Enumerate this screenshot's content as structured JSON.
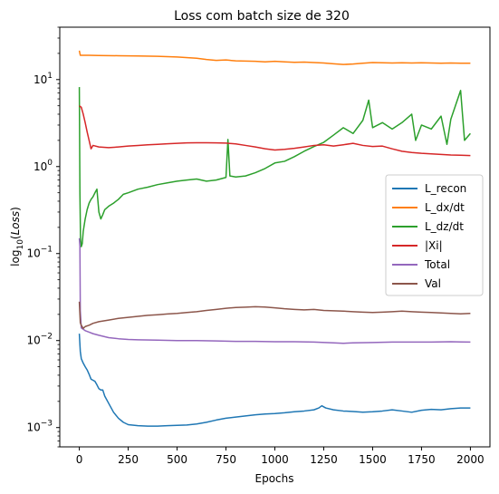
{
  "chart_data": {
    "type": "line",
    "title": "Loss com batch size de 320",
    "xlabel": "Epochs",
    "ylabel_prefix": "log",
    "ylabel_sub": "10",
    "ylabel_paren_open": "(",
    "ylabel_var": "Loss",
    "ylabel_paren_close": ")",
    "xlim": [
      -100,
      2100
    ],
    "ylim": [
      0.0006,
      40
    ],
    "yscale": "log",
    "grid": false,
    "legend_position": "center-right",
    "x_ticks": [
      0,
      250,
      500,
      750,
      1000,
      1250,
      1500,
      1750,
      2000
    ],
    "x_tick_labels": [
      "0",
      "250",
      "500",
      "750",
      "1000",
      "1250",
      "1500",
      "1750",
      "2000"
    ],
    "y_ticks": [
      {
        "value": 0.001,
        "base": "10",
        "exp": "−3"
      },
      {
        "value": 0.01,
        "base": "10",
        "exp": "−2"
      },
      {
        "value": 0.1,
        "base": "10",
        "exp": "−1"
      },
      {
        "value": 1,
        "base": "10",
        "exp": "0"
      },
      {
        "value": 10,
        "base": "10",
        "exp": "1"
      }
    ],
    "series": [
      {
        "name": "L_recon",
        "color": "#1f77b4",
        "points": [
          [
            0,
            0.012
          ],
          [
            5,
            0.0075
          ],
          [
            10,
            0.0062
          ],
          [
            20,
            0.0055
          ],
          [
            30,
            0.005
          ],
          [
            40,
            0.0046
          ],
          [
            50,
            0.0041
          ],
          [
            60,
            0.0036
          ],
          [
            70,
            0.0035
          ],
          [
            80,
            0.0034
          ],
          [
            90,
            0.0031
          ],
          [
            100,
            0.0028
          ],
          [
            110,
            0.0027
          ],
          [
            120,
            0.0027
          ],
          [
            130,
            0.0023
          ],
          [
            150,
            0.0019
          ],
          [
            175,
            0.0015
          ],
          [
            200,
            0.00128
          ],
          [
            225,
            0.00115
          ],
          [
            250,
            0.00108
          ],
          [
            300,
            0.00105
          ],
          [
            350,
            0.00104
          ],
          [
            400,
            0.00104
          ],
          [
            450,
            0.00105
          ],
          [
            500,
            0.00106
          ],
          [
            550,
            0.00107
          ],
          [
            600,
            0.0011
          ],
          [
            650,
            0.00115
          ],
          [
            700,
            0.00122
          ],
          [
            750,
            0.00128
          ],
          [
            800,
            0.00132
          ],
          [
            850,
            0.00136
          ],
          [
            900,
            0.0014
          ],
          [
            950,
            0.00143
          ],
          [
            1000,
            0.00145
          ],
          [
            1050,
            0.00148
          ],
          [
            1100,
            0.00152
          ],
          [
            1150,
            0.00155
          ],
          [
            1200,
            0.0016
          ],
          [
            1225,
            0.00168
          ],
          [
            1240,
            0.00178
          ],
          [
            1260,
            0.00168
          ],
          [
            1300,
            0.0016
          ],
          [
            1350,
            0.00155
          ],
          [
            1400,
            0.00153
          ],
          [
            1450,
            0.0015
          ],
          [
            1500,
            0.00152
          ],
          [
            1550,
            0.00155
          ],
          [
            1600,
            0.0016
          ],
          [
            1650,
            0.00155
          ],
          [
            1700,
            0.0015
          ],
          [
            1750,
            0.00158
          ],
          [
            1800,
            0.00162
          ],
          [
            1850,
            0.0016
          ],
          [
            1900,
            0.00165
          ],
          [
            1950,
            0.00168
          ],
          [
            2000,
            0.00168
          ]
        ]
      },
      {
        "name": "L_dx/dt",
        "color": "#ff7f0e",
        "points": [
          [
            0,
            21.5
          ],
          [
            5,
            19.0
          ],
          [
            50,
            19.0
          ],
          [
            100,
            18.9
          ],
          [
            200,
            18.8
          ],
          [
            300,
            18.7
          ],
          [
            400,
            18.5
          ],
          [
            500,
            18.2
          ],
          [
            600,
            17.6
          ],
          [
            650,
            17.0
          ],
          [
            700,
            16.6
          ],
          [
            750,
            16.8
          ],
          [
            800,
            16.4
          ],
          [
            850,
            16.3
          ],
          [
            900,
            16.2
          ],
          [
            950,
            16.0
          ],
          [
            1000,
            16.2
          ],
          [
            1050,
            16.0
          ],
          [
            1100,
            15.8
          ],
          [
            1150,
            15.9
          ],
          [
            1200,
            15.7
          ],
          [
            1250,
            15.5
          ],
          [
            1300,
            15.2
          ],
          [
            1350,
            14.9
          ],
          [
            1400,
            15.1
          ],
          [
            1450,
            15.4
          ],
          [
            1500,
            15.7
          ],
          [
            1550,
            15.6
          ],
          [
            1600,
            15.5
          ],
          [
            1650,
            15.6
          ],
          [
            1700,
            15.5
          ],
          [
            1750,
            15.6
          ],
          [
            1800,
            15.5
          ],
          [
            1850,
            15.4
          ],
          [
            1900,
            15.5
          ],
          [
            1950,
            15.4
          ],
          [
            2000,
            15.4
          ]
        ]
      },
      {
        "name": "L_dz/dt",
        "color": "#2ca02c",
        "points": [
          [
            0,
            8.2
          ],
          [
            3,
            0.5
          ],
          [
            6,
            0.15
          ],
          [
            10,
            0.12
          ],
          [
            15,
            0.13
          ],
          [
            20,
            0.18
          ],
          [
            30,
            0.25
          ],
          [
            40,
            0.32
          ],
          [
            50,
            0.38
          ],
          [
            60,
            0.42
          ],
          [
            70,
            0.45
          ],
          [
            80,
            0.5
          ],
          [
            90,
            0.55
          ],
          [
            100,
            0.3
          ],
          [
            110,
            0.25
          ],
          [
            120,
            0.28
          ],
          [
            130,
            0.32
          ],
          [
            150,
            0.35
          ],
          [
            175,
            0.38
          ],
          [
            200,
            0.42
          ],
          [
            225,
            0.48
          ],
          [
            250,
            0.5
          ],
          [
            300,
            0.55
          ],
          [
            350,
            0.58
          ],
          [
            400,
            0.62
          ],
          [
            450,
            0.65
          ],
          [
            500,
            0.68
          ],
          [
            550,
            0.7
          ],
          [
            600,
            0.72
          ],
          [
            650,
            0.68
          ],
          [
            700,
            0.7
          ],
          [
            750,
            0.75
          ],
          [
            760,
            2.05
          ],
          [
            770,
            0.78
          ],
          [
            800,
            0.76
          ],
          [
            850,
            0.78
          ],
          [
            900,
            0.85
          ],
          [
            950,
            0.95
          ],
          [
            1000,
            1.1
          ],
          [
            1050,
            1.15
          ],
          [
            1100,
            1.3
          ],
          [
            1150,
            1.5
          ],
          [
            1200,
            1.7
          ],
          [
            1250,
            1.9
          ],
          [
            1300,
            2.3
          ],
          [
            1350,
            2.8
          ],
          [
            1400,
            2.4
          ],
          [
            1450,
            3.4
          ],
          [
            1480,
            5.8
          ],
          [
            1500,
            2.8
          ],
          [
            1550,
            3.2
          ],
          [
            1600,
            2.7
          ],
          [
            1650,
            3.2
          ],
          [
            1700,
            4.0
          ],
          [
            1720,
            2.0
          ],
          [
            1750,
            3.0
          ],
          [
            1800,
            2.7
          ],
          [
            1850,
            3.8
          ],
          [
            1880,
            1.8
          ],
          [
            1900,
            3.5
          ],
          [
            1950,
            7.5
          ],
          [
            1970,
            2.0
          ],
          [
            2000,
            2.4
          ]
        ]
      },
      {
        "name": "|Xi|",
        "color": "#d62728",
        "points": [
          [
            0,
            5.0
          ],
          [
            10,
            4.8
          ],
          [
            20,
            4.0
          ],
          [
            30,
            3.2
          ],
          [
            40,
            2.5
          ],
          [
            50,
            2.0
          ],
          [
            60,
            1.6
          ],
          [
            70,
            1.75
          ],
          [
            100,
            1.68
          ],
          [
            150,
            1.65
          ],
          [
            200,
            1.68
          ],
          [
            250,
            1.72
          ],
          [
            300,
            1.75
          ],
          [
            350,
            1.78
          ],
          [
            400,
            1.8
          ],
          [
            450,
            1.83
          ],
          [
            500,
            1.85
          ],
          [
            550,
            1.87
          ],
          [
            600,
            1.88
          ],
          [
            650,
            1.88
          ],
          [
            700,
            1.87
          ],
          [
            750,
            1.86
          ],
          [
            800,
            1.82
          ],
          [
            850,
            1.75
          ],
          [
            900,
            1.68
          ],
          [
            950,
            1.6
          ],
          [
            1000,
            1.55
          ],
          [
            1050,
            1.58
          ],
          [
            1100,
            1.62
          ],
          [
            1150,
            1.68
          ],
          [
            1200,
            1.75
          ],
          [
            1250,
            1.78
          ],
          [
            1300,
            1.72
          ],
          [
            1350,
            1.78
          ],
          [
            1400,
            1.85
          ],
          [
            1450,
            1.75
          ],
          [
            1500,
            1.7
          ],
          [
            1550,
            1.72
          ],
          [
            1600,
            1.6
          ],
          [
            1650,
            1.5
          ],
          [
            1700,
            1.45
          ],
          [
            1750,
            1.42
          ],
          [
            1800,
            1.4
          ],
          [
            1850,
            1.38
          ],
          [
            1900,
            1.36
          ],
          [
            1950,
            1.35
          ],
          [
            2000,
            1.34
          ]
        ]
      },
      {
        "name": "Total",
        "color": "#9467bd",
        "points": [
          [
            0,
            0.15
          ],
          [
            3,
            0.12
          ],
          [
            5,
            0.022
          ],
          [
            10,
            0.014
          ],
          [
            20,
            0.0135
          ],
          [
            30,
            0.013
          ],
          [
            50,
            0.0125
          ],
          [
            70,
            0.012
          ],
          [
            100,
            0.0115
          ],
          [
            150,
            0.0108
          ],
          [
            200,
            0.0105
          ],
          [
            250,
            0.0103
          ],
          [
            300,
            0.0102
          ],
          [
            400,
            0.0101
          ],
          [
            500,
            0.01
          ],
          [
            600,
            0.01
          ],
          [
            700,
            0.0099
          ],
          [
            800,
            0.0098
          ],
          [
            900,
            0.0098
          ],
          [
            1000,
            0.0097
          ],
          [
            1100,
            0.0097
          ],
          [
            1200,
            0.0096
          ],
          [
            1300,
            0.0094
          ],
          [
            1350,
            0.0093
          ],
          [
            1400,
            0.0094
          ],
          [
            1500,
            0.0095
          ],
          [
            1600,
            0.0096
          ],
          [
            1700,
            0.0096
          ],
          [
            1800,
            0.0096
          ],
          [
            1900,
            0.0097
          ],
          [
            2000,
            0.0096
          ]
        ]
      },
      {
        "name": "Val",
        "color": "#8c564b",
        "points": [
          [
            0,
            0.028
          ],
          [
            5,
            0.016
          ],
          [
            10,
            0.015
          ],
          [
            20,
            0.0138
          ],
          [
            30,
            0.0145
          ],
          [
            50,
            0.015
          ],
          [
            70,
            0.0158
          ],
          [
            100,
            0.0165
          ],
          [
            150,
            0.0172
          ],
          [
            200,
            0.018
          ],
          [
            250,
            0.0185
          ],
          [
            300,
            0.019
          ],
          [
            350,
            0.0195
          ],
          [
            400,
            0.0198
          ],
          [
            450,
            0.0202
          ],
          [
            500,
            0.0205
          ],
          [
            550,
            0.021
          ],
          [
            600,
            0.0215
          ],
          [
            650,
            0.0222
          ],
          [
            700,
            0.0228
          ],
          [
            750,
            0.0235
          ],
          [
            800,
            0.024
          ],
          [
            850,
            0.0242
          ],
          [
            900,
            0.0245
          ],
          [
            950,
            0.0243
          ],
          [
            1000,
            0.0238
          ],
          [
            1050,
            0.0232
          ],
          [
            1100,
            0.0228
          ],
          [
            1150,
            0.0225
          ],
          [
            1200,
            0.0228
          ],
          [
            1250,
            0.0222
          ],
          [
            1300,
            0.022
          ],
          [
            1350,
            0.0218
          ],
          [
            1400,
            0.0215
          ],
          [
            1450,
            0.0212
          ],
          [
            1500,
            0.021
          ],
          [
            1550,
            0.0212
          ],
          [
            1600,
            0.0215
          ],
          [
            1650,
            0.0218
          ],
          [
            1700,
            0.0215
          ],
          [
            1750,
            0.0212
          ],
          [
            1800,
            0.021
          ],
          [
            1850,
            0.0208
          ],
          [
            1900,
            0.0205
          ],
          [
            1950,
            0.0203
          ],
          [
            2000,
            0.0205
          ]
        ]
      }
    ]
  }
}
